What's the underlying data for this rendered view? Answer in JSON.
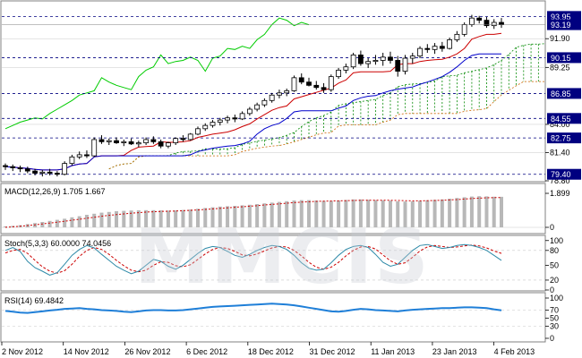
{
  "watermark": {
    "text": "MMCIS"
  },
  "colors": {
    "background": "#ffffff",
    "grid": "#c8c8c8",
    "up_candle": "#ffffff",
    "down_candle": "#000000",
    "tenkan": "#cc0000",
    "kijun": "#0000cc",
    "chikou": "#00cc00",
    "cloud_a": "#008800",
    "cloud_b": "#cc6600",
    "level_line": "#000080",
    "level_box": "#000080",
    "price_box": "#000080",
    "macd_hist": "#b8b8b8",
    "macd_signal": "#cc0000",
    "stoch_main": "#2e8aa8",
    "stoch_signal": "#cc0000",
    "rsi": "#1f7fd8"
  },
  "chart_data": [
    {
      "type": "candlestick",
      "title": "",
      "ylim": [
        78.8,
        95.3
      ],
      "x_tick_labels": [
        "2 Nov 2012",
        "14 Nov 2012",
        "26 Nov 2012",
        "6 Dec 2012",
        "18 Dec 2012",
        "31 Dec 2012",
        "11 Jan 2013",
        "23 Jan 2013",
        "4 Feb 2013"
      ],
      "y_tick_labels": [
        "91.90",
        "89.25",
        "84.00",
        "81.40",
        "78.80"
      ],
      "levels": [
        93.95,
        90.15,
        86.85,
        84.55,
        82.75,
        79.4
      ],
      "level_labels": [
        "93.95",
        "90.15",
        "86.85",
        "84.55",
        "82.75",
        "79.40"
      ],
      "current_price": 93.19,
      "current_price_label": "93.19",
      "ohlc": [
        [
          80.2,
          80.4,
          79.8,
          80.1
        ],
        [
          80.1,
          80.3,
          79.7,
          80.0
        ],
        [
          80.0,
          80.2,
          79.6,
          79.9
        ],
        [
          79.9,
          80.1,
          79.5,
          79.7
        ],
        [
          79.7,
          79.9,
          79.3,
          79.5
        ],
        [
          79.5,
          79.8,
          79.2,
          79.6
        ],
        [
          79.6,
          79.9,
          79.3,
          79.5
        ],
        [
          79.5,
          79.7,
          79.2,
          79.4
        ],
        [
          79.4,
          80.6,
          79.3,
          80.4
        ],
        [
          80.4,
          81.2,
          80.2,
          81.0
        ],
        [
          81.0,
          81.5,
          80.8,
          81.2
        ],
        [
          81.2,
          81.6,
          80.9,
          81.1
        ],
        [
          81.1,
          82.8,
          81.0,
          82.6
        ],
        [
          82.6,
          83.0,
          82.2,
          82.4
        ],
        [
          82.4,
          82.7,
          82.1,
          82.5
        ],
        [
          82.5,
          82.8,
          82.2,
          82.3
        ],
        [
          82.3,
          82.6,
          82.0,
          82.4
        ],
        [
          82.4,
          82.7,
          82.1,
          82.2
        ],
        [
          82.2,
          82.5,
          81.9,
          82.3
        ],
        [
          82.3,
          82.8,
          82.1,
          82.6
        ],
        [
          82.6,
          82.9,
          82.2,
          82.4
        ],
        [
          82.4,
          82.6,
          81.8,
          82.0
        ],
        [
          82.0,
          82.4,
          81.8,
          82.3
        ],
        [
          82.3,
          82.8,
          82.1,
          82.7
        ],
        [
          82.7,
          83.0,
          82.4,
          82.6
        ],
        [
          82.6,
          83.2,
          82.5,
          83.1
        ],
        [
          83.1,
          83.8,
          83.0,
          83.6
        ],
        [
          83.6,
          84.1,
          83.4,
          83.9
        ],
        [
          83.9,
          84.4,
          83.7,
          84.2
        ],
        [
          84.2,
          84.6,
          83.9,
          84.4
        ],
        [
          84.4,
          84.8,
          84.1,
          84.6
        ],
        [
          84.6,
          84.9,
          84.2,
          84.5
        ],
        [
          84.5,
          85.2,
          84.4,
          85.0
        ],
        [
          85.0,
          85.6,
          84.8,
          85.4
        ],
        [
          85.4,
          86.0,
          85.2,
          85.8
        ],
        [
          85.8,
          86.4,
          85.6,
          86.2
        ],
        [
          86.2,
          86.9,
          86.0,
          86.7
        ],
        [
          86.7,
          87.2,
          86.4,
          86.9
        ],
        [
          86.9,
          87.3,
          86.6,
          87.1
        ],
        [
          87.1,
          88.5,
          87.0,
          88.3
        ],
        [
          88.3,
          88.7,
          87.7,
          87.9
        ],
        [
          87.9,
          88.3,
          87.5,
          87.6
        ],
        [
          87.6,
          88.0,
          87.2,
          87.4
        ],
        [
          87.4,
          87.8,
          86.9,
          87.2
        ],
        [
          87.2,
          88.6,
          87.0,
          88.4
        ],
        [
          88.4,
          89.2,
          88.2,
          89.0
        ],
        [
          89.0,
          89.6,
          88.7,
          89.3
        ],
        [
          89.3,
          90.6,
          89.1,
          90.4
        ],
        [
          90.4,
          90.8,
          89.4,
          89.6
        ],
        [
          89.6,
          90.1,
          89.2,
          89.8
        ],
        [
          89.8,
          90.4,
          89.5,
          89.9
        ],
        [
          89.9,
          90.6,
          89.4,
          90.2
        ],
        [
          90.2,
          90.7,
          89.6,
          89.9
        ],
        [
          89.9,
          90.3,
          88.4,
          88.9
        ],
        [
          88.9,
          90.4,
          88.6,
          90.1
        ],
        [
          90.1,
          90.6,
          89.6,
          90.3
        ],
        [
          90.3,
          91.2,
          90.1,
          91.0
        ],
        [
          91.0,
          91.4,
          90.6,
          90.9
        ],
        [
          90.9,
          91.5,
          90.5,
          91.2
        ],
        [
          91.2,
          91.6,
          90.7,
          91.0
        ],
        [
          91.0,
          92.0,
          90.9,
          91.8
        ],
        [
          91.8,
          92.6,
          91.6,
          92.3
        ],
        [
          92.3,
          93.4,
          92.1,
          93.2
        ],
        [
          93.2,
          94.1,
          93.0,
          93.8
        ],
        [
          93.8,
          94.0,
          93.3,
          93.6
        ],
        [
          93.6,
          93.9,
          92.9,
          93.1
        ],
        [
          93.1,
          93.7,
          92.8,
          93.4
        ],
        [
          93.4,
          93.8,
          92.9,
          93.19
        ]
      ]
    },
    {
      "type": "bar",
      "title": "MACD(12,26,9) 1.705 1.667",
      "ylim": [
        -0.3,
        2.2
      ],
      "y_tick_labels": [
        "1.899",
        "0"
      ],
      "values": [
        0.05,
        0.08,
        0.12,
        0.18,
        0.24,
        0.3,
        0.36,
        0.42,
        0.48,
        0.56,
        0.62,
        0.7,
        0.76,
        0.82,
        0.86,
        0.9,
        0.92,
        0.94,
        0.95,
        0.96,
        0.96,
        0.95,
        0.94,
        0.95,
        0.97,
        1.0,
        1.04,
        1.08,
        1.12,
        1.16,
        1.18,
        1.2,
        1.23,
        1.26,
        1.3,
        1.34,
        1.38,
        1.42,
        1.46,
        1.5,
        1.52,
        1.52,
        1.5,
        1.48,
        1.48,
        1.5,
        1.53,
        1.56,
        1.56,
        1.54,
        1.52,
        1.51,
        1.49,
        1.45,
        1.44,
        1.45,
        1.48,
        1.51,
        1.54,
        1.56,
        1.6,
        1.64,
        1.68,
        1.72,
        1.74,
        1.73,
        1.71,
        1.705
      ],
      "signal": [
        0.0,
        0.03,
        0.06,
        0.1,
        0.14,
        0.19,
        0.24,
        0.29,
        0.34,
        0.4,
        0.45,
        0.51,
        0.56,
        0.62,
        0.67,
        0.71,
        0.75,
        0.79,
        0.82,
        0.85,
        0.87,
        0.89,
        0.9,
        0.91,
        0.93,
        0.95,
        0.97,
        1.0,
        1.03,
        1.06,
        1.09,
        1.12,
        1.15,
        1.18,
        1.21,
        1.25,
        1.28,
        1.31,
        1.35,
        1.38,
        1.41,
        1.43,
        1.45,
        1.46,
        1.47,
        1.48,
        1.49,
        1.5,
        1.51,
        1.51,
        1.51,
        1.51,
        1.51,
        1.5,
        1.49,
        1.48,
        1.48,
        1.49,
        1.5,
        1.51,
        1.53,
        1.55,
        1.58,
        1.61,
        1.63,
        1.65,
        1.66,
        1.667
      ]
    },
    {
      "type": "line",
      "title": "Stoch(5,3,3) 60.0000 74.0456",
      "ylim": [
        0,
        105
      ],
      "y_tick_labels": [
        "100",
        "80",
        "50",
        "20",
        "0"
      ],
      "levels": [
        80,
        20
      ],
      "main": [
        80,
        86,
        78,
        58,
        45,
        38,
        30,
        35,
        52,
        70,
        82,
        90,
        85,
        72,
        60,
        48,
        40,
        33,
        38,
        50,
        62,
        58,
        48,
        42,
        50,
        62,
        74,
        84,
        88,
        86,
        78,
        70,
        66,
        72,
        80,
        86,
        90,
        88,
        82,
        70,
        55,
        44,
        40,
        42,
        55,
        70,
        82,
        88,
        90,
        86,
        72,
        56,
        48,
        52,
        66,
        80,
        90,
        92,
        88,
        84,
        86,
        90,
        92,
        90,
        86,
        80,
        70,
        60
      ],
      "signal": [
        75,
        80,
        82,
        74,
        60,
        47,
        38,
        34,
        39,
        52,
        68,
        80,
        86,
        82,
        72,
        60,
        49,
        40,
        37,
        40,
        50,
        57,
        56,
        49,
        47,
        51,
        62,
        73,
        82,
        86,
        84,
        78,
        71,
        69,
        73,
        79,
        85,
        88,
        87,
        80,
        69,
        56,
        46,
        42,
        46,
        56,
        69,
        80,
        87,
        88,
        83,
        71,
        59,
        52,
        55,
        66,
        79,
        87,
        90,
        88,
        86,
        87,
        89,
        91,
        89,
        85,
        79,
        74
      ]
    },
    {
      "type": "line",
      "title": "RSI(14) 69.4842",
      "ylim": [
        0,
        100
      ],
      "y_tick_labels": [
        "100",
        "70",
        "50",
        "30",
        "0"
      ],
      "levels": [
        70,
        30
      ],
      "values": [
        68,
        66,
        64,
        63,
        65,
        67,
        69,
        71,
        73,
        74,
        75,
        73,
        72,
        70,
        69,
        68,
        66,
        65,
        67,
        69,
        70,
        70,
        69,
        69,
        70,
        72,
        74,
        76,
        78,
        79,
        80,
        81,
        82,
        83,
        84,
        85,
        86,
        85,
        84,
        82,
        79,
        76,
        73,
        70,
        67,
        66,
        68,
        71,
        73,
        72,
        70,
        69,
        68,
        67,
        69,
        71,
        72,
        73,
        74,
        75,
        75,
        76,
        77,
        77,
        76,
        75,
        72,
        69.48
      ]
    }
  ]
}
